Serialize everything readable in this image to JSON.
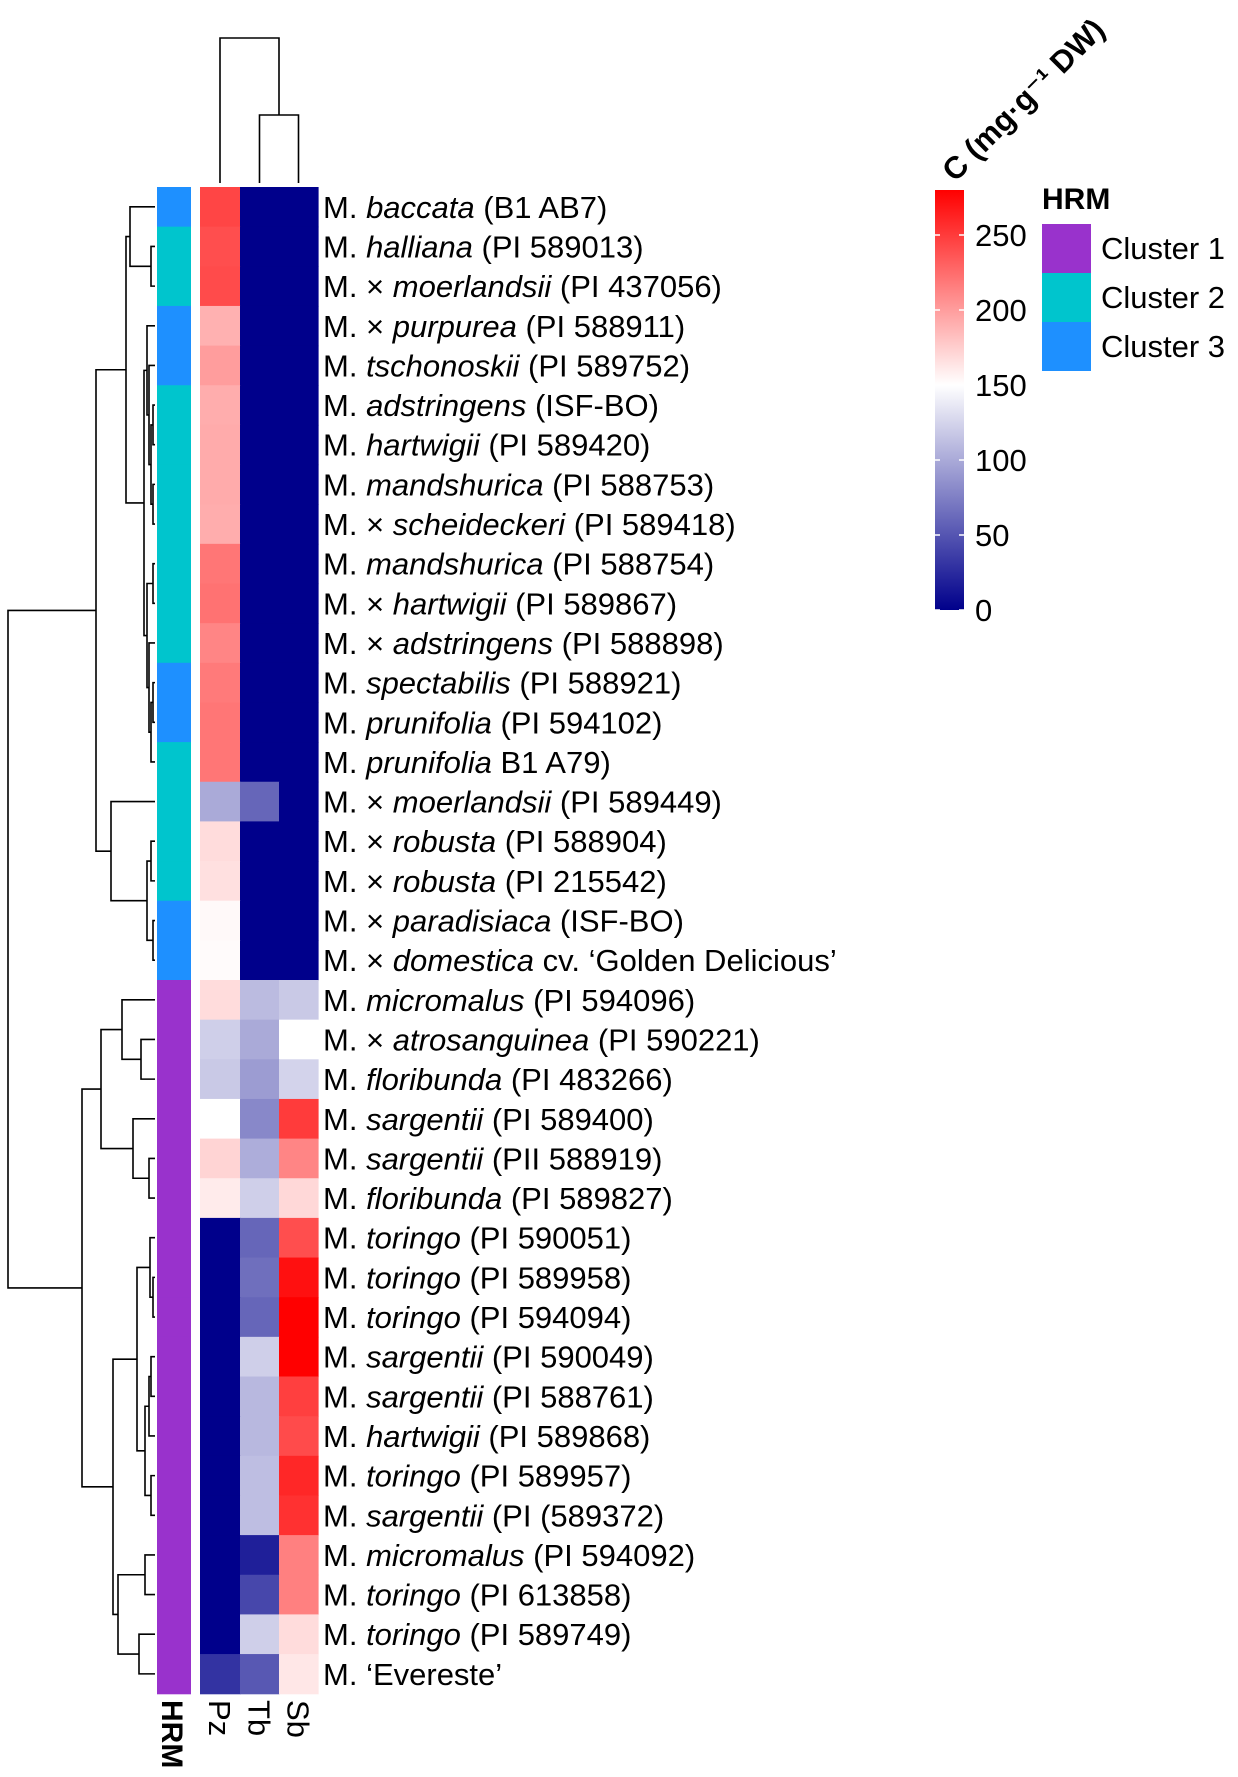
{
  "chart_data": {
    "type": "heatmap",
    "title": "",
    "color_scale": {
      "title": "C (mg·g⁻¹ DW)",
      "min": 0,
      "max": 280,
      "mid": 150,
      "low_color": "#00008b",
      "mid_color": "#ffffff",
      "high_color": "#ff0000",
      "ticks": [
        "250",
        "200",
        "150",
        "100",
        "50",
        "0"
      ],
      "tick_values": [
        250,
        200,
        150,
        100,
        50,
        0
      ]
    },
    "annotation": {
      "name": "HRM",
      "legend_title": "HRM",
      "clusters": [
        {
          "label": "Cluster 1",
          "color": "#9932cc"
        },
        {
          "label": "Cluster 2",
          "color": "#00c5cd"
        },
        {
          "label": "Cluster 3",
          "color": "#1e90ff"
        }
      ]
    },
    "columns": [
      "Pz",
      "Tb",
      "Sb"
    ],
    "rows": [
      {
        "genus": "M.",
        "species": "baccata",
        "accession": "(B1 AB7)",
        "hrm": 3,
        "values": [
          245,
          0,
          0
        ]
      },
      {
        "genus": "M.",
        "species": "halliana",
        "accession": "(PI 589013)",
        "hrm": 2,
        "values": [
          240,
          0,
          0
        ]
      },
      {
        "genus": "M. ×",
        "species": "moerlandsii",
        "accession": "(PI 437056)",
        "hrm": 2,
        "values": [
          242,
          0,
          0
        ]
      },
      {
        "genus": "M. ×",
        "species": "purpurea",
        "accession": "(PI 588911)",
        "hrm": 3,
        "values": [
          190,
          0,
          0
        ]
      },
      {
        "genus": "M.",
        "species": "tschonoskii",
        "accession": "(PI 589752)",
        "hrm": 3,
        "values": [
          200,
          0,
          0
        ]
      },
      {
        "genus": "M.",
        "species": "adstringens",
        "accession": "(ISF-BO)",
        "hrm": 2,
        "values": [
          192,
          0,
          0
        ]
      },
      {
        "genus": "M.",
        "species": "hartwigii",
        "accession": "(PI 589420)",
        "hrm": 2,
        "values": [
          193,
          0,
          0
        ]
      },
      {
        "genus": "M.",
        "species": "mandshurica",
        "accession": "(PI 588753)",
        "hrm": 2,
        "values": [
          193,
          0,
          0
        ]
      },
      {
        "genus": "M. ×",
        "species": "scheideckeri",
        "accession": "(PI 589418)",
        "hrm": 2,
        "values": [
          192,
          0,
          0
        ]
      },
      {
        "genus": "M.",
        "species": "mandshurica",
        "accession": "(PI 588754)",
        "hrm": 2,
        "values": [
          220,
          0,
          0
        ]
      },
      {
        "genus": "M. ×",
        "species": "hartwigii",
        "accession": "(PI 589867)",
        "hrm": 2,
        "values": [
          222,
          0,
          0
        ]
      },
      {
        "genus": "M. ×",
        "species": "adstringens",
        "accession": "(PI 588898)",
        "hrm": 2,
        "values": [
          212,
          0,
          0
        ]
      },
      {
        "genus": "M.",
        "species": "spectabilis",
        "accession": "(PI 588921)",
        "hrm": 3,
        "values": [
          218,
          0,
          0
        ]
      },
      {
        "genus": "M.",
        "species": "prunifolia",
        "accession": "(PI 594102)",
        "hrm": 3,
        "values": [
          220,
          0,
          0
        ]
      },
      {
        "genus": "M.",
        "species": "prunifolia",
        "accession": "B1 A79)",
        "hrm": 2,
        "values": [
          220,
          0,
          0
        ]
      },
      {
        "genus": "M. ×",
        "species": "moerlandsii",
        "accession": "(PI 589449)",
        "hrm": 2,
        "values": [
          100,
          60,
          0
        ]
      },
      {
        "genus": "M. ×",
        "species": "robusta",
        "accession": "(PI 588904)",
        "hrm": 2,
        "values": [
          168,
          0,
          0
        ]
      },
      {
        "genus": "M. ×",
        "species": "robusta",
        "accession": "(PI 215542)",
        "hrm": 2,
        "values": [
          166,
          0,
          0
        ]
      },
      {
        "genus": "M. ×",
        "species": "paradisiaca",
        "accession": "(ISF-BO)",
        "hrm": 3,
        "values": [
          153,
          0,
          0
        ]
      },
      {
        "genus": "M. ×",
        "species": "domestica",
        "accession": "cv. ‘Golden Delicious’",
        "hrm": 3,
        "values": [
          152,
          0,
          0
        ]
      },
      {
        "genus": "M.",
        "species": "micromalus",
        "accession": "(PI 594096)",
        "hrm": 1,
        "values": [
          168,
          110,
          118
        ]
      },
      {
        "genus": "M. ×",
        "species": "atrosanguinea",
        "accession": "(PI 590221)",
        "hrm": 1,
        "values": [
          122,
          100,
          150
        ]
      },
      {
        "genus": "M.",
        "species": "floribunda",
        "accession": "(PI 483266)",
        "hrm": 1,
        "values": [
          118,
          92,
          124
        ]
      },
      {
        "genus": "M.",
        "species": "sargentii",
        "accession": "(PI 589400)",
        "hrm": 1,
        "values": [
          150,
          80,
          250
        ]
      },
      {
        "genus": "M.",
        "species": "sargentii",
        "accession": "(PII 588919)",
        "hrm": 1,
        "values": [
          172,
          102,
          212
        ]
      },
      {
        "genus": "M.",
        "species": "floribunda",
        "accession": "(PI 589827)",
        "hrm": 1,
        "values": [
          160,
          122,
          170
        ]
      },
      {
        "genus": "M.",
        "species": "toringo",
        "accession": "(PI 590051)",
        "hrm": 1,
        "values": [
          0,
          60,
          240
        ]
      },
      {
        "genus": "M.",
        "species": "toringo",
        "accession": "(PI 589958)",
        "hrm": 1,
        "values": [
          0,
          65,
          272
        ]
      },
      {
        "genus": "M.",
        "species": "toringo",
        "accession": "(PI 594094)",
        "hrm": 1,
        "values": [
          0,
          60,
          280
        ]
      },
      {
        "genus": "M.",
        "species": "sargentii",
        "accession": "(PI 590049)",
        "hrm": 1,
        "values": [
          0,
          122,
          280
        ]
      },
      {
        "genus": "M.",
        "species": "sargentii",
        "accession": "(PI 588761)",
        "hrm": 1,
        "values": [
          0,
          108,
          248
        ]
      },
      {
        "genus": "M.",
        "species": "hartwigii",
        "accession": "(PI 589868)",
        "hrm": 1,
        "values": [
          0,
          108,
          242
        ]
      },
      {
        "genus": "M.",
        "species": "toringo",
        "accession": "(PI 589957)",
        "hrm": 1,
        "values": [
          0,
          112,
          260
        ]
      },
      {
        "genus": "M.",
        "species": "sargentii",
        "accession": "(PI (589372)",
        "hrm": 1,
        "values": [
          0,
          112,
          255
        ]
      },
      {
        "genus": "M.",
        "species": "micromalus",
        "accession": "(PI 594092)",
        "hrm": 1,
        "values": [
          0,
          18,
          215
        ]
      },
      {
        "genus": "M.",
        "species": "toringo",
        "accession": "(PI 613858)",
        "hrm": 1,
        "values": [
          0,
          42,
          215
        ]
      },
      {
        "genus": "M.",
        "species": "toringo",
        "accession": "(PI 589749)",
        "hrm": 1,
        "values": [
          0,
          122,
          168
        ]
      },
      {
        "genus": "M.",
        "species": "",
        "accession": "‘Evereste’",
        "hrm": 1,
        "values": [
          30,
          52,
          162
        ]
      }
    ]
  }
}
